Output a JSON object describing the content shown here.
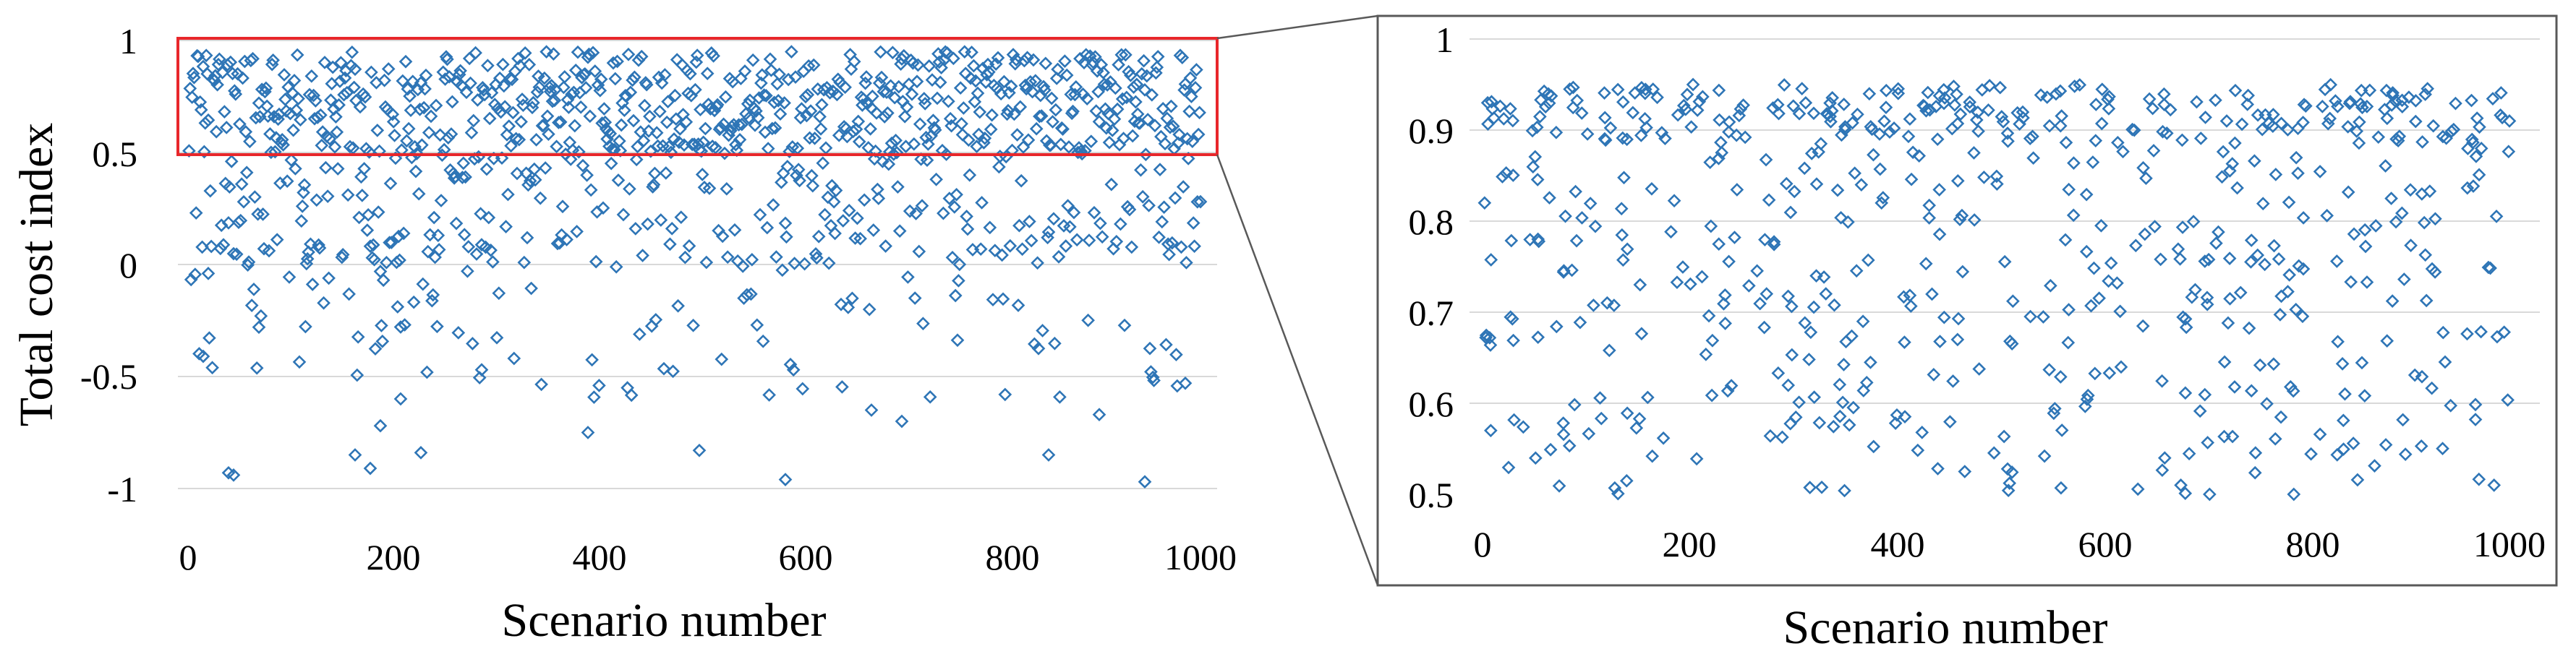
{
  "colors": {
    "marker": "#2E75B6",
    "grid": "#D9D9D9",
    "highlight_box": "#E8272B",
    "frame": "#595959"
  },
  "chart_data": [
    {
      "type": "scatter",
      "panel": "overview",
      "title": "",
      "xlabel": "Scenario number",
      "ylabel": "Total cost index",
      "xlim": [
        -10,
        1010
      ],
      "ylim": [
        -1,
        1
      ],
      "xticks": [
        "0",
        "200",
        "400",
        "600",
        "800",
        "1000"
      ],
      "yticks": [
        "1",
        "0.5",
        "0",
        "-0.5",
        "-1"
      ],
      "grid": "horizontal",
      "marker": "open-diamond",
      "highlight": {
        "x": [
          0,
          1000
        ],
        "y": [
          0.5,
          1
        ]
      },
      "series": [
        {
          "n_points": 1000,
          "x_range": [
            1,
            1000
          ],
          "y_distribution": "dense band 0.5–0.95, sparse spread 0–0.5, scattered negatives down to -0.97",
          "notable_points": [
            {
              "x": 40,
              "y": -0.93
            },
            {
              "x": 45,
              "y": -0.94
            },
            {
              "x": 15,
              "y": -0.41
            },
            {
              "x": 20,
              "y": -0.04
            },
            {
              "x": 70,
              "y": -0.28
            },
            {
              "x": 165,
              "y": -0.85
            },
            {
              "x": 180,
              "y": -0.91
            },
            {
              "x": 190,
              "y": -0.72
            },
            {
              "x": 210,
              "y": -0.6
            },
            {
              "x": 230,
              "y": -0.84
            },
            {
              "x": 290,
              "y": -0.47
            },
            {
              "x": 395,
              "y": -0.75
            },
            {
              "x": 505,
              "y": -0.83
            },
            {
              "x": 590,
              "y": -0.96
            },
            {
              "x": 675,
              "y": -0.65
            },
            {
              "x": 705,
              "y": -0.7
            },
            {
              "x": 850,
              "y": -0.85
            },
            {
              "x": 900,
              "y": -0.67
            },
            {
              "x": 945,
              "y": -0.97
            },
            {
              "x": 985,
              "y": -0.53
            }
          ]
        }
      ]
    },
    {
      "type": "scatter",
      "panel": "zoomed",
      "title": "",
      "xlabel": "Scenario number",
      "ylabel": "",
      "xlim": [
        -10,
        1010
      ],
      "ylim": [
        0.5,
        1
      ],
      "xticks": [
        "0",
        "200",
        "400",
        "600",
        "800",
        "1000"
      ],
      "yticks": [
        "1",
        "0.9",
        "0.8",
        "0.7",
        "0.6",
        "0.5"
      ],
      "grid": "horizontal",
      "marker": "open-diamond",
      "series": [
        {
          "n_points": 620,
          "x_range": [
            1,
            1000
          ],
          "y_distribution": "dense band 0.88–0.95, sparse spread 0.5–0.88",
          "notable_points": [
            {
              "x": 2,
              "y": 0.82
            },
            {
              "x": 5,
              "y": 0.93
            },
            {
              "x": 8,
              "y": 0.57
            },
            {
              "x": 205,
              "y": 0.95
            },
            {
              "x": 680,
              "y": 0.51
            },
            {
              "x": 708,
              "y": 0.5
            },
            {
              "x": 790,
              "y": 0.5
            },
            {
              "x": 985,
              "y": 0.51
            },
            {
              "x": 1000,
              "y": 0.91
            }
          ]
        }
      ]
    }
  ]
}
